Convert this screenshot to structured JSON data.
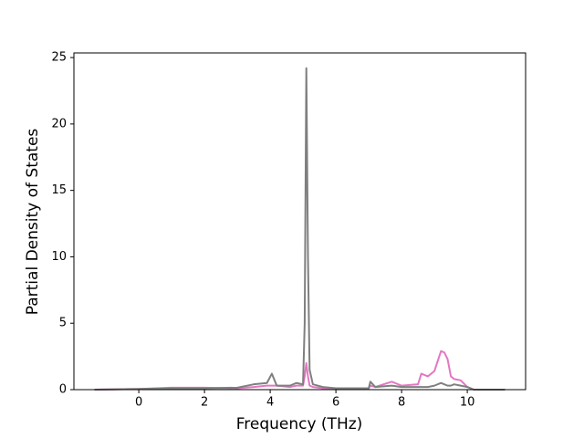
{
  "chart_data": {
    "type": "line",
    "xlabel": "Frequency (THz)",
    "ylabel": "Partial Density of States",
    "x": [
      -1.35,
      0,
      1,
      2,
      3,
      3.5,
      3.9,
      4.05,
      4.2,
      4.6,
      4.8,
      5.0,
      5.05,
      5.1,
      5.15,
      5.2,
      5.3,
      5.6,
      6,
      7.0,
      7.05,
      7.2,
      7.7,
      8.0,
      8.5,
      8.6,
      8.8,
      9.0,
      9.2,
      9.3,
      9.4,
      9.5,
      9.6,
      9.8,
      10.0,
      10.2,
      11.15
    ],
    "series": [
      {
        "color": "#e377c2",
        "values": [
          0,
          0.05,
          0.15,
          0.15,
          0.1,
          0.2,
          0.3,
          0.3,
          0.3,
          0.2,
          0.3,
          0.3,
          1,
          2,
          1,
          0.3,
          0.2,
          0.1,
          0.1,
          0.1,
          0.3,
          0.2,
          0.6,
          0.3,
          0.4,
          1.2,
          1.0,
          1.4,
          2.9,
          2.8,
          2.3,
          1.0,
          0.8,
          0.7,
          0.2,
          0,
          0
        ]
      },
      {
        "color": "#7f7f7f",
        "values": [
          0,
          0.05,
          0.1,
          0.1,
          0.15,
          0.4,
          0.5,
          1.2,
          0.3,
          0.3,
          0.5,
          0.4,
          5,
          24.2,
          10,
          1.5,
          0.4,
          0.2,
          0.1,
          0.1,
          0.6,
          0.2,
          0.3,
          0.2,
          0.2,
          0.2,
          0.2,
          0.3,
          0.5,
          0.4,
          0.3,
          0.3,
          0.4,
          0.3,
          0.2,
          0,
          0
        ]
      }
    ],
    "xlim": [
      -1.975,
      11.775
    ],
    "ylim": [
      0,
      25.35
    ],
    "xticks": [
      0,
      2,
      4,
      6,
      8,
      10
    ],
    "yticks": [
      0,
      5,
      10,
      15,
      20,
      25
    ]
  }
}
